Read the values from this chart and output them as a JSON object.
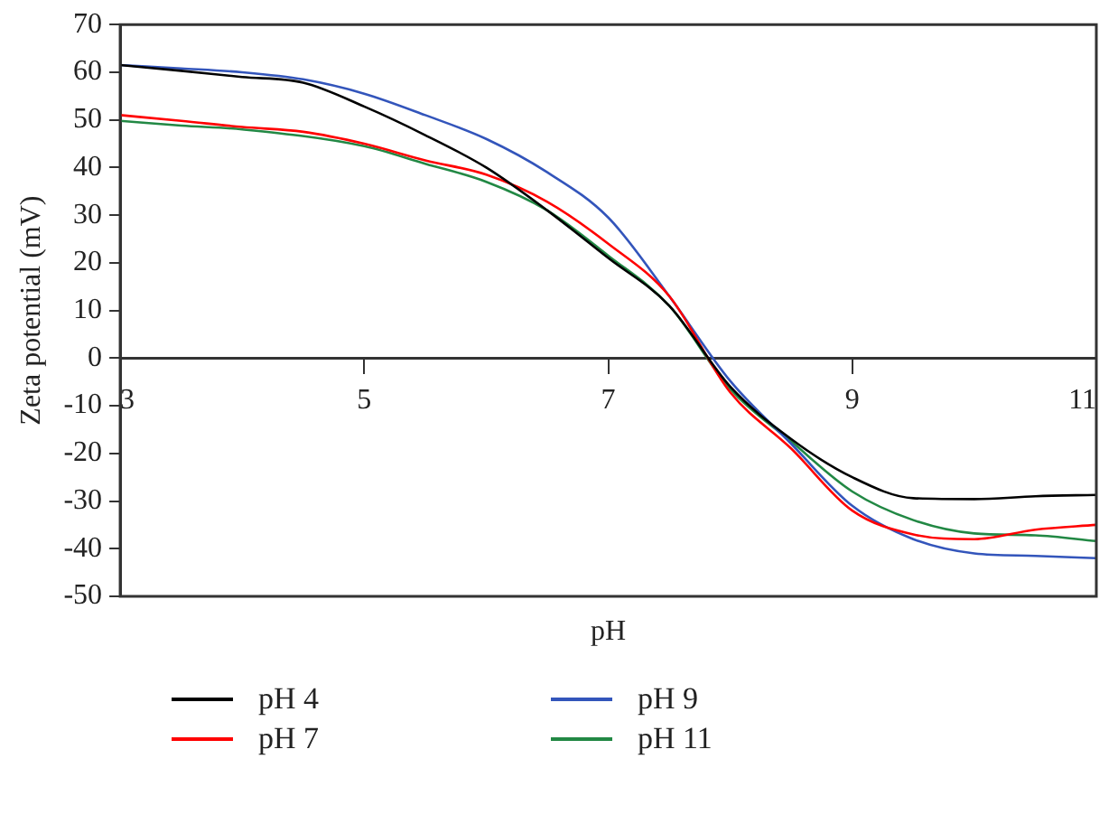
{
  "chart_data": {
    "type": "line",
    "xlabel": "pH",
    "ylabel": "Zeta potential (mV)",
    "x": [
      3,
      3.5,
      4,
      4.5,
      5,
      5.5,
      6,
      6.5,
      7,
      7.5,
      8,
      8.5,
      9,
      9.5,
      10,
      10.5,
      11
    ],
    "xlim": [
      3,
      11
    ],
    "xticks": [
      3,
      5,
      7,
      9,
      11
    ],
    "ylim": [
      -50,
      70
    ],
    "yticks": [
      -50,
      -40,
      -30,
      -20,
      -10,
      0,
      10,
      20,
      30,
      40,
      50,
      60,
      70
    ],
    "grid": false,
    "legend": "bottom",
    "marker": "none",
    "line_style": "solid",
    "series": [
      {
        "name": "pH 4",
        "color": "#000000",
        "values": [
          61.5,
          60.3,
          59,
          57.8,
          52.8,
          46.8,
          40,
          31,
          21,
          11,
          -6,
          -17,
          -25,
          -29.4,
          -29.6,
          -29,
          -28.7
        ]
      },
      {
        "name": "pH 7",
        "color": "#ff0000",
        "values": [
          51,
          49.8,
          48.5,
          47.5,
          45,
          41.5,
          38.5,
          32.8,
          24,
          13,
          -7.2,
          -19,
          -32,
          -37,
          -38,
          -36,
          -35
        ]
      },
      {
        "name": "pH 9",
        "color": "#3355bb",
        "values": [
          61.5,
          60.8,
          60,
          58.5,
          55.5,
          51,
          46,
          39,
          29.5,
          13,
          -4.8,
          -18,
          -31,
          -38,
          -41,
          -41.5,
          -42
        ]
      },
      {
        "name": "pH 11",
        "color": "#228844",
        "values": [
          49.8,
          48.8,
          48,
          null,
          44.5,
          40.8,
          37,
          31,
          21.5,
          11,
          -6.5,
          -17.5,
          -28,
          -34,
          -36.8,
          -37.2,
          -38.4
        ]
      }
    ]
  }
}
